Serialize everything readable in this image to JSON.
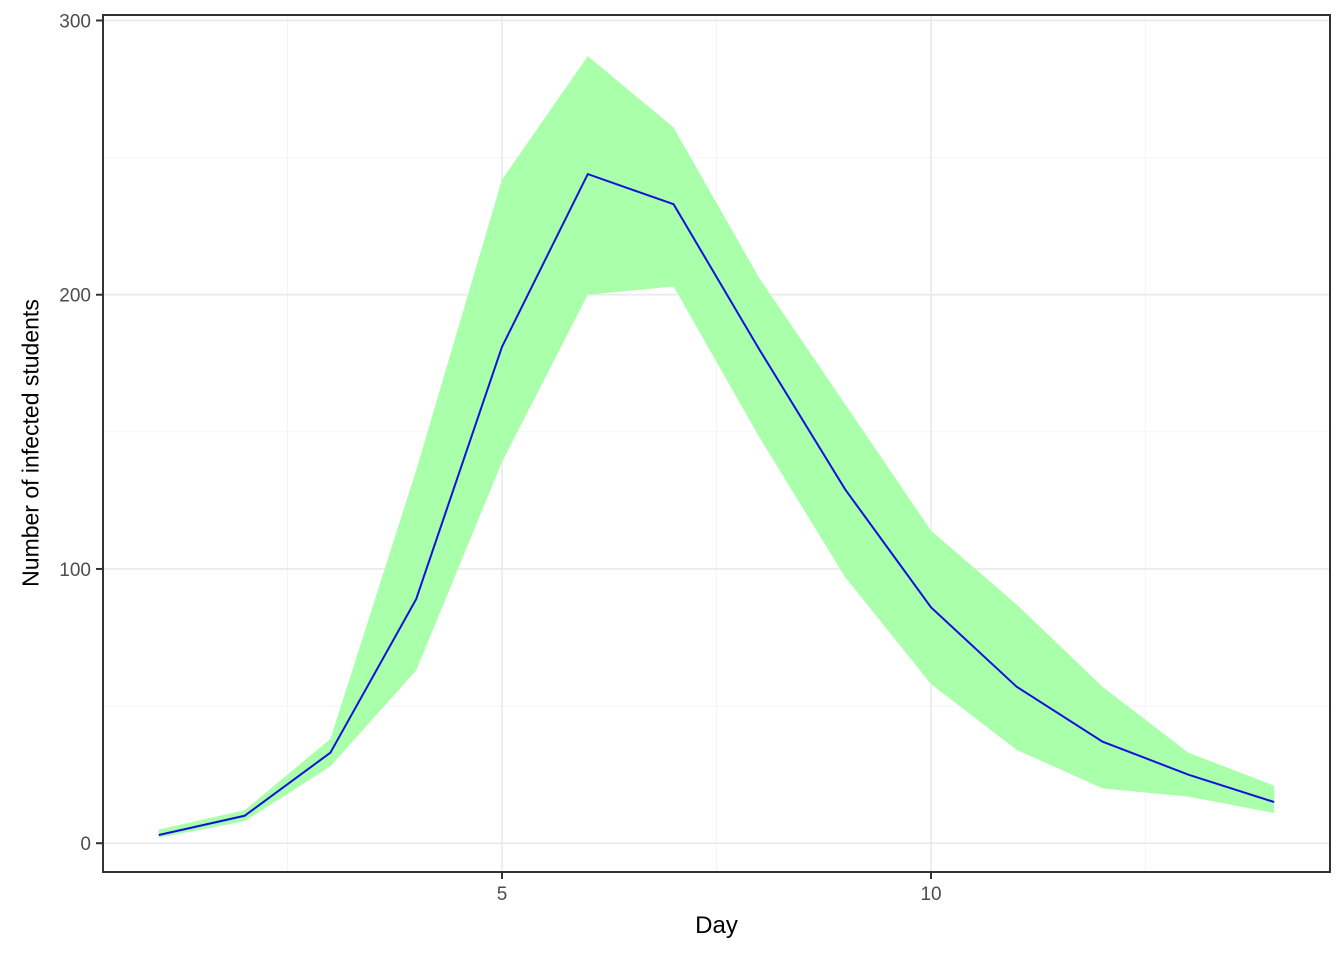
{
  "chart_data": {
    "type": "line",
    "title": "",
    "xlabel": "Day",
    "ylabel": "Number of infected students",
    "x": [
      1,
      2,
      3,
      4,
      5,
      6,
      7,
      8,
      9,
      10,
      11,
      12,
      13,
      14
    ],
    "series": [
      {
        "name": "infected-mean-line",
        "kind": "line",
        "color": "#1212dd",
        "stroke_width": 2,
        "values": [
          3,
          10,
          33,
          89,
          181,
          244,
          233,
          180,
          129,
          86,
          57,
          37,
          25,
          15
        ]
      },
      {
        "name": "infected-uncertainty-band",
        "kind": "ribbon",
        "color": "#aaffaa",
        "lower": [
          2,
          8,
          28,
          63,
          139,
          200,
          203,
          148,
          97,
          58,
          34,
          20,
          17,
          11
        ],
        "upper": [
          5,
          12,
          38,
          136,
          242,
          287,
          261,
          206,
          160,
          114,
          87,
          57,
          33,
          21
        ]
      }
    ],
    "xlim": [
      0.35,
      14.65
    ],
    "ylim": [
      -10.5,
      302
    ],
    "x_ticks": [
      {
        "value": 5,
        "label": "5"
      },
      {
        "value": 10,
        "label": "10"
      }
    ],
    "x_minor_ticks": [
      2.5,
      7.5,
      12.5
    ],
    "y_ticks": [
      {
        "value": 0,
        "label": "0"
      },
      {
        "value": 100,
        "label": "100"
      },
      {
        "value": 200,
        "label": "200"
      },
      {
        "value": 300,
        "label": "300"
      }
    ],
    "y_minor_ticks": [
      50,
      150,
      250
    ],
    "grid": "on",
    "legend": "none",
    "style": {
      "background": "#ffffff",
      "panel_background": "#ffffff",
      "panel_border_color": "#333333",
      "grid_major_color": "#e9e9e9",
      "grid_minor_color": "#f4f4f4",
      "tick_mark_color": "#333333",
      "tick_label_color": "#4d4d4d",
      "axis_title_color": "#000000"
    }
  }
}
